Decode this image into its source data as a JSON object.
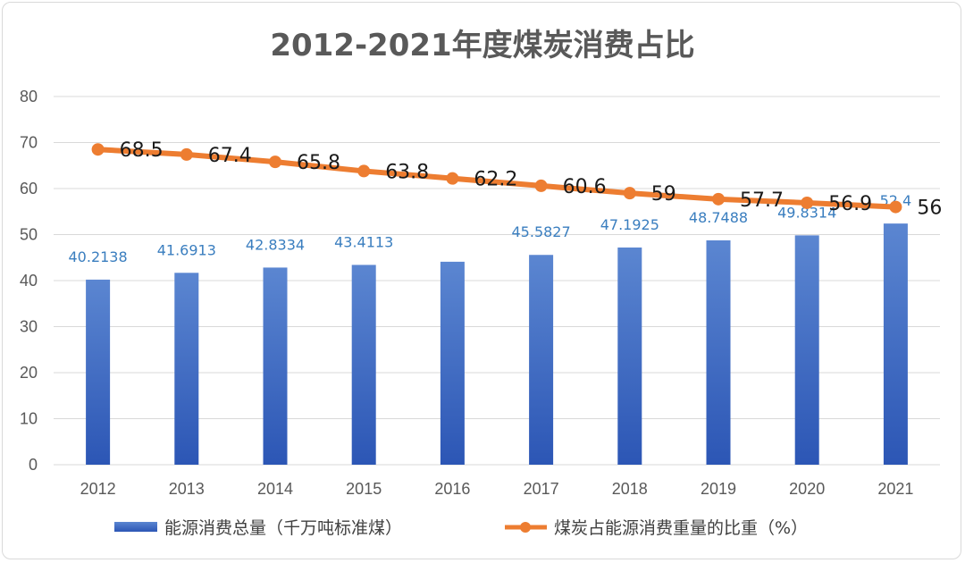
{
  "chart_data": {
    "type": "bar",
    "title": "2012-2021年度煤炭消费占比",
    "categories": [
      "2012",
      "2013",
      "2014",
      "2015",
      "2016",
      "2017",
      "2018",
      "2019",
      "2020",
      "2021"
    ],
    "ylim": [
      0,
      80
    ],
    "yticks": [
      0,
      10,
      20,
      30,
      40,
      50,
      60,
      70,
      80
    ],
    "grid": true,
    "legend_position": "bottom",
    "series": [
      {
        "name": "能源消费总量（千万吨标准煤）",
        "type": "bar",
        "color": "#4472c4",
        "values": [
          40.2138,
          41.6913,
          42.8334,
          43.4113,
          44.1,
          45.5827,
          47.1925,
          48.7488,
          49.8314,
          52.4
        ],
        "labels": [
          "40.2138",
          "41.6913",
          "42.8334",
          "43.4113",
          "",
          "45.5827",
          "47.1925",
          "48.7488",
          "49.8314",
          "52.4"
        ]
      },
      {
        "name": "煤炭占能源消费重量的比重（%）",
        "type": "line",
        "color": "#ed7d31",
        "values": [
          68.5,
          67.4,
          65.8,
          63.8,
          62.2,
          60.6,
          59,
          57.7,
          56.9,
          56
        ],
        "labels": [
          "68.5",
          "67.4",
          "65.8",
          "63.8",
          "62.2",
          "60.6",
          "59",
          "57.7",
          "56.9",
          "56"
        ]
      }
    ]
  }
}
